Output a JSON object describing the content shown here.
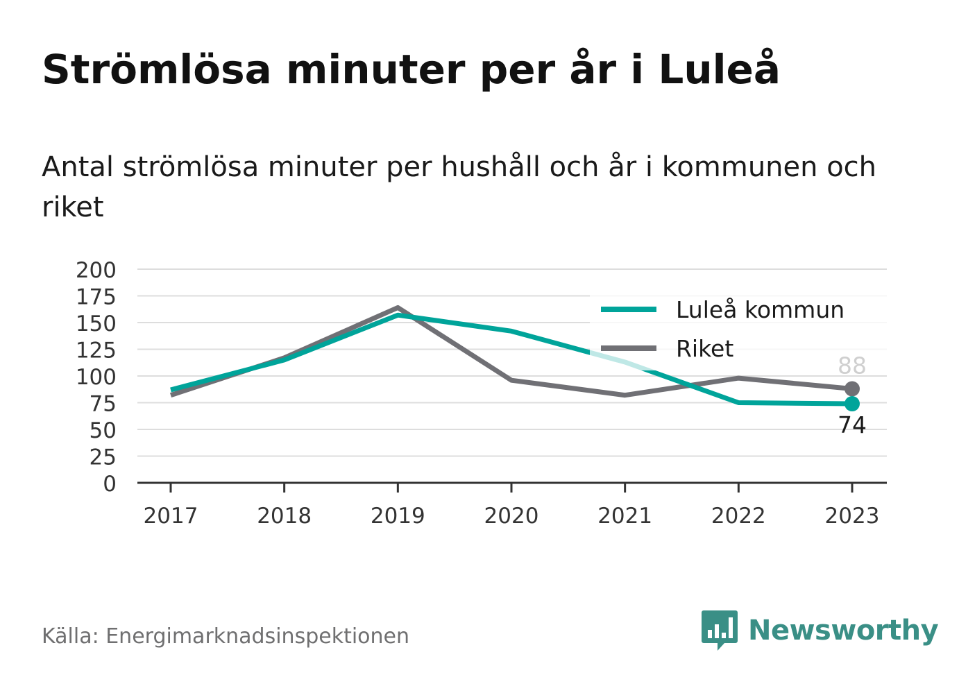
{
  "title": "Strömlösa minuter per år i Luleå",
  "subtitle": "Antal strömlösa minuter per hushåll och år i kommunen och riket",
  "source": "Källa: Energimarknadsinspektionen",
  "brand": "Newsworthy",
  "colors": {
    "lulea": "#00a49a",
    "riket": "#707075",
    "grid": "#dddddd",
    "axis": "#333333",
    "brand": "#3a8f86"
  },
  "icons": {
    "brand_logo": "bar-chart-speech-bubble-icon"
  },
  "chart_data": {
    "type": "line",
    "x": [
      "2017",
      "2018",
      "2019",
      "2020",
      "2021",
      "2022",
      "2023"
    ],
    "series": [
      {
        "name": "Luleå kommun",
        "values": [
          87,
          115,
          157,
          142,
          113,
          75,
          74
        ],
        "color": "#00a49a",
        "end_label": "74"
      },
      {
        "name": "Riket",
        "values": [
          82,
          117,
          164,
          96,
          82,
          98,
          88
        ],
        "color": "#707075",
        "end_label": "88"
      }
    ],
    "yticks": [
      "0",
      "25",
      "50",
      "75",
      "100",
      "125",
      "150",
      "175",
      "200"
    ],
    "ylim": [
      0,
      200
    ],
    "grid": true,
    "legend_position": "top-right"
  }
}
